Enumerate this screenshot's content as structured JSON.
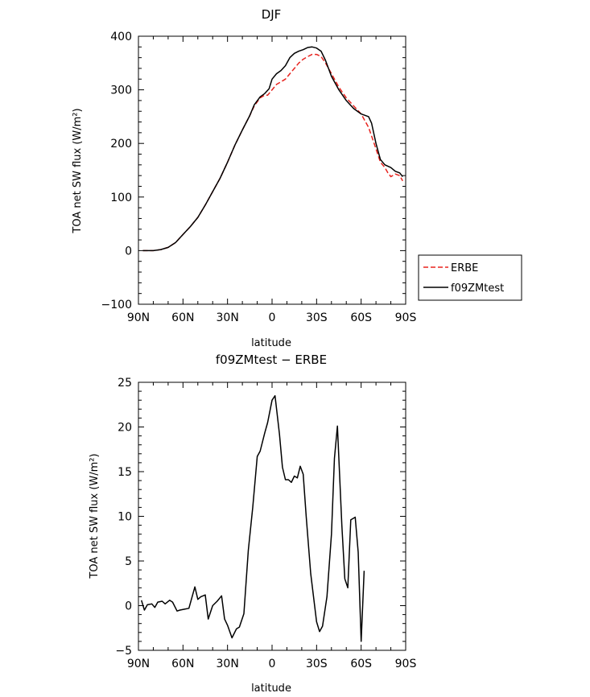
{
  "chart_data": [
    {
      "type": "line",
      "title": "DJF",
      "xlabel": "latitude",
      "ylabel": "TOA net SW flux (W/m²)",
      "x_tick_labels": [
        "90N",
        "60N",
        "30N",
        "0",
        "30S",
        "60S",
        "90S"
      ],
      "y_tick_labels": [
        "400",
        "300",
        "200",
        "100",
        "0",
        "−100"
      ],
      "xlim": [
        -90,
        90
      ],
      "ylim": [
        -100,
        400
      ],
      "x_note": "negative = North, positive = South",
      "legend_position": "right",
      "series": [
        {
          "name": "ERBE",
          "color": "#e8231e",
          "style": "dashed",
          "points": [
            [
              -87,
              0
            ],
            [
              -80,
              0
            ],
            [
              -75,
              2
            ],
            [
              -70,
              6
            ],
            [
              -65,
              15
            ],
            [
              -60,
              30
            ],
            [
              -55,
              45
            ],
            [
              -50,
              62
            ],
            [
              -45,
              85
            ],
            [
              -40,
              110
            ],
            [
              -35,
              135
            ],
            [
              -30,
              165
            ],
            [
              -25,
              197
            ],
            [
              -20,
              225
            ],
            [
              -15,
              252
            ],
            [
              -12,
              270
            ],
            [
              -8,
              285
            ],
            [
              -5,
              290
            ],
            [
              -3,
              290
            ],
            [
              0,
              300
            ],
            [
              3,
              310
            ],
            [
              6,
              315
            ],
            [
              9,
              320
            ],
            [
              12,
              330
            ],
            [
              15,
              340
            ],
            [
              18,
              350
            ],
            [
              21,
              357
            ],
            [
              24,
              362
            ],
            [
              27,
              366
            ],
            [
              30,
              366
            ],
            [
              33,
              362
            ],
            [
              36,
              350
            ],
            [
              40,
              330
            ],
            [
              45,
              305
            ],
            [
              50,
              285
            ],
            [
              55,
              270
            ],
            [
              60,
              255
            ],
            [
              65,
              230
            ],
            [
              70,
              190
            ],
            [
              73,
              165
            ],
            [
              76,
              155
            ],
            [
              78,
              145
            ],
            [
              80,
              138
            ],
            [
              83,
              143
            ],
            [
              86,
              140
            ],
            [
              88,
              130
            ]
          ]
        },
        {
          "name": "f09ZMtest",
          "color": "#000000",
          "style": "solid",
          "points": [
            [
              -87,
              0
            ],
            [
              -80,
              0
            ],
            [
              -75,
              2
            ],
            [
              -70,
              6
            ],
            [
              -65,
              15
            ],
            [
              -60,
              30
            ],
            [
              -55,
              45
            ],
            [
              -50,
              62
            ],
            [
              -45,
              85
            ],
            [
              -40,
              110
            ],
            [
              -35,
              135
            ],
            [
              -30,
              165
            ],
            [
              -25,
              197
            ],
            [
              -20,
              225
            ],
            [
              -15,
              252
            ],
            [
              -12,
              272
            ],
            [
              -8,
              287
            ],
            [
              -5,
              293
            ],
            [
              -2,
              302
            ],
            [
              0,
              320
            ],
            [
              3,
              330
            ],
            [
              6,
              336
            ],
            [
              9,
              345
            ],
            [
              12,
              360
            ],
            [
              15,
              368
            ],
            [
              18,
              372
            ],
            [
              21,
              375
            ],
            [
              24,
              379
            ],
            [
              27,
              380
            ],
            [
              30,
              378
            ],
            [
              33,
              372
            ],
            [
              36,
              355
            ],
            [
              40,
              325
            ],
            [
              45,
              300
            ],
            [
              50,
              280
            ],
            [
              55,
              265
            ],
            [
              60,
              255
            ],
            [
              65,
              250
            ],
            [
              67,
              238
            ],
            [
              70,
              200
            ],
            [
              73,
              170
            ],
            [
              76,
              160
            ],
            [
              80,
              155
            ],
            [
              83,
              148
            ],
            [
              86,
              145
            ],
            [
              88,
              138
            ]
          ]
        }
      ]
    },
    {
      "type": "line",
      "title": "f09ZMtest − ERBE",
      "xlabel": "latitude",
      "ylabel": "TOA net SW flux (W/m²)",
      "x_tick_labels": [
        "90N",
        "60N",
        "30N",
        "0",
        "30S",
        "60S",
        "90S"
      ],
      "y_tick_labels": [
        "25",
        "20",
        "15",
        "10",
        "5",
        "0",
        "−5"
      ],
      "xlim": [
        -90,
        90
      ],
      "ylim": [
        -5,
        25
      ],
      "x_note": "negative = North, positive = South",
      "series": [
        {
          "name": "",
          "color": "#000000",
          "style": "solid",
          "points": [
            [
              -88,
              0.6
            ],
            [
              -86,
              -0.5
            ],
            [
              -84,
              0.1
            ],
            [
              -81,
              0.2
            ],
            [
              -79,
              -0.2
            ],
            [
              -77,
              0.4
            ],
            [
              -74,
              0.5
            ],
            [
              -72,
              0.2
            ],
            [
              -69,
              0.6
            ],
            [
              -67,
              0.4
            ],
            [
              -64,
              -0.6
            ],
            [
              -62,
              -0.5
            ],
            [
              -59,
              -0.4
            ],
            [
              -56,
              -0.3
            ],
            [
              -52,
              2.1
            ],
            [
              -50,
              0.7
            ],
            [
              -48,
              1.0
            ],
            [
              -45,
              1.2
            ],
            [
              -43,
              -1.5
            ],
            [
              -40,
              0.0
            ],
            [
              -37,
              0.5
            ],
            [
              -34,
              1.1
            ],
            [
              -32,
              -1.5
            ],
            [
              -30,
              -2.2
            ],
            [
              -27,
              -3.6
            ],
            [
              -24,
              -2.6
            ],
            [
              -22,
              -2.4
            ],
            [
              -19,
              -0.9
            ],
            [
              -16,
              6.2
            ],
            [
              -13,
              11.0
            ],
            [
              -10,
              16.7
            ],
            [
              -8,
              17.3
            ],
            [
              -5,
              19.3
            ],
            [
              -3,
              20.5
            ],
            [
              0,
              23.0
            ],
            [
              2,
              23.5
            ],
            [
              5,
              19.2
            ],
            [
              7,
              15.5
            ],
            [
              9,
              14.1
            ],
            [
              11,
              14.1
            ],
            [
              13,
              13.8
            ],
            [
              15,
              14.5
            ],
            [
              17,
              14.3
            ],
            [
              19,
              15.6
            ],
            [
              21,
              14.7
            ],
            [
              23,
              10.0
            ],
            [
              26,
              3.6
            ],
            [
              30,
              -1.8
            ],
            [
              32,
              -2.9
            ],
            [
              34,
              -2.3
            ],
            [
              37,
              1.0
            ],
            [
              40,
              8.0
            ],
            [
              42,
              16.5
            ],
            [
              44,
              20.1
            ],
            [
              47,
              9.0
            ],
            [
              49,
              3.0
            ],
            [
              51,
              2.0
            ],
            [
              53,
              9.6
            ],
            [
              56,
              9.9
            ],
            [
              58,
              6.0
            ],
            [
              60,
              -4.0
            ],
            [
              62,
              3.9
            ]
          ]
        }
      ]
    }
  ]
}
